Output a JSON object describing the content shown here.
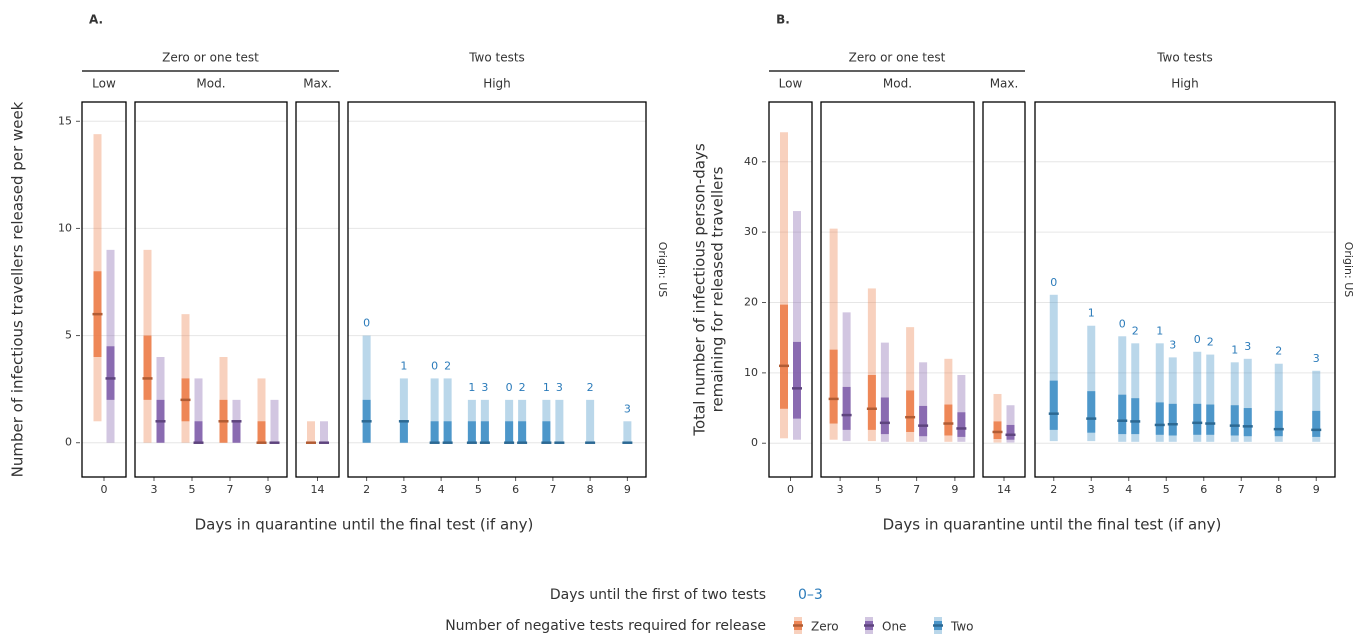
{
  "legend": {
    "first_test_title": "Days until the first of two tests",
    "first_test_range": "0–3",
    "title": "Number of negative tests required for release",
    "label_color": "#2b7bba",
    "series": [
      {
        "name": "Zero",
        "color": "#ec7a45"
      },
      {
        "name": "One",
        "color": "#7e5ba8"
      },
      {
        "name": "Two",
        "color": "#3a8cc4"
      }
    ]
  },
  "chart_data": [
    {
      "type": "interval",
      "title": "A.",
      "ylabel": [
        "Number of infectious travellers released per week"
      ],
      "xlabel": "Days in quarantine until the final test (if any)",
      "strip_right": "Origin: US",
      "ylim": [
        -1.6,
        15.9
      ],
      "yticks": [
        0,
        5,
        10,
        15
      ],
      "grid": true,
      "facet_groups": [
        {
          "label": "Zero or one test",
          "facets": [
            {
              "name": "Low",
              "categories": [
                0
              ],
              "groups": [
                [
                  {
                    "series": "Zero",
                    "low": 1,
                    "q1": 4,
                    "median": 6,
                    "q3": 8,
                    "high": 14.4
                  },
                  {
                    "series": "One",
                    "low": 0,
                    "q1": 2,
                    "median": 3,
                    "q3": 4.5,
                    "high": 9
                  }
                ]
              ]
            },
            {
              "name": "Mod.",
              "categories": [
                3,
                5,
                7,
                9
              ],
              "groups": [
                [
                  {
                    "series": "Zero",
                    "low": 0,
                    "q1": 2,
                    "median": 3,
                    "q3": 5,
                    "high": 9
                  },
                  {
                    "series": "One",
                    "low": 0,
                    "q1": 0,
                    "median": 1,
                    "q3": 2,
                    "high": 4
                  }
                ],
                [
                  {
                    "series": "Zero",
                    "low": 0,
                    "q1": 1,
                    "median": 2,
                    "q3": 3,
                    "high": 6
                  },
                  {
                    "series": "One",
                    "low": 0,
                    "q1": 0,
                    "median": 0,
                    "q3": 1,
                    "high": 3
                  }
                ],
                [
                  {
                    "series": "Zero",
                    "low": 0,
                    "q1": 0,
                    "median": 1,
                    "q3": 2,
                    "high": 4
                  },
                  {
                    "series": "One",
                    "low": 0,
                    "q1": 0,
                    "median": 1,
                    "q3": 1,
                    "high": 2
                  }
                ],
                [
                  {
                    "series": "Zero",
                    "low": 0,
                    "q1": 0,
                    "median": 0,
                    "q3": 1,
                    "high": 3
                  },
                  {
                    "series": "One",
                    "low": 0,
                    "q1": 0,
                    "median": 0,
                    "q3": 0,
                    "high": 2
                  }
                ]
              ]
            },
            {
              "name": "Max.",
              "categories": [
                14
              ],
              "groups": [
                [
                  {
                    "series": "Zero",
                    "low": 0,
                    "q1": 0,
                    "median": 0,
                    "q3": 0,
                    "high": 1
                  },
                  {
                    "series": "One",
                    "low": 0,
                    "q1": 0,
                    "median": 0,
                    "q3": 0,
                    "high": 1
                  }
                ]
              ]
            }
          ]
        },
        {
          "label": "Two tests",
          "facets": [
            {
              "name": "High",
              "categories": [
                2,
                3,
                4,
                5,
                6,
                7,
                8,
                9
              ],
              "groups": [
                [
                  {
                    "series": "Two",
                    "first_test": 0,
                    "low": 0,
                    "q1": 0,
                    "median": 1,
                    "q3": 2,
                    "high": 5
                  }
                ],
                [
                  {
                    "series": "Two",
                    "first_test": 1,
                    "low": 0,
                    "q1": 0,
                    "median": 1,
                    "q3": 1,
                    "high": 3
                  }
                ],
                [
                  {
                    "series": "Two",
                    "first_test": 0,
                    "low": 0,
                    "q1": 0,
                    "median": 0,
                    "q3": 1,
                    "high": 3
                  },
                  {
                    "series": "Two",
                    "first_test": 2,
                    "low": 0,
                    "q1": 0,
                    "median": 0,
                    "q3": 1,
                    "high": 3
                  }
                ],
                [
                  {
                    "series": "Two",
                    "first_test": 1,
                    "low": 0,
                    "q1": 0,
                    "median": 0,
                    "q3": 1,
                    "high": 2
                  },
                  {
                    "series": "Two",
                    "first_test": 3,
                    "low": 0,
                    "q1": 0,
                    "median": 0,
                    "q3": 1,
                    "high": 2
                  }
                ],
                [
                  {
                    "series": "Two",
                    "first_test": 0,
                    "low": 0,
                    "q1": 0,
                    "median": 0,
                    "q3": 1,
                    "high": 2
                  },
                  {
                    "series": "Two",
                    "first_test": 2,
                    "low": 0,
                    "q1": 0,
                    "median": 0,
                    "q3": 1,
                    "high": 2
                  }
                ],
                [
                  {
                    "series": "Two",
                    "first_test": 1,
                    "low": 0,
                    "q1": 0,
                    "median": 0,
                    "q3": 1,
                    "high": 2
                  },
                  {
                    "series": "Two",
                    "first_test": 3,
                    "low": 0,
                    "q1": 0,
                    "median": 0,
                    "q3": 0,
                    "high": 2
                  }
                ],
                [
                  {
                    "series": "Two",
                    "first_test": 2,
                    "low": 0,
                    "q1": 0,
                    "median": 0,
                    "q3": 0,
                    "high": 2
                  }
                ],
                [
                  {
                    "series": "Two",
                    "first_test": 3,
                    "low": 0,
                    "q1": 0,
                    "median": 0,
                    "q3": 0,
                    "high": 1
                  }
                ]
              ]
            }
          ]
        }
      ]
    },
    {
      "type": "interval",
      "title": "B.",
      "ylabel": [
        "Total number of infectious person-days",
        "remaining for released travellers"
      ],
      "xlabel": "Days in quarantine until the final test (if any)",
      "strip_right": "Origin: US",
      "ylim": [
        -4.8,
        48.5
      ],
      "yticks": [
        0,
        10,
        20,
        30,
        40
      ],
      "grid": true,
      "facet_groups": [
        {
          "label": "Zero or one test",
          "facets": [
            {
              "name": "Low",
              "categories": [
                0
              ],
              "groups": [
                [
                  {
                    "series": "Zero",
                    "low": 0.7,
                    "q1": 4.9,
                    "median": 11,
                    "q3": 19.7,
                    "high": 44.2
                  },
                  {
                    "series": "One",
                    "low": 0.5,
                    "q1": 3.5,
                    "median": 7.8,
                    "q3": 14.4,
                    "high": 33
                  }
                ]
              ]
            },
            {
              "name": "Mod.",
              "categories": [
                3,
                5,
                7,
                9
              ],
              "groups": [
                [
                  {
                    "series": "Zero",
                    "low": 0.5,
                    "q1": 2.8,
                    "median": 6.3,
                    "q3": 13.3,
                    "high": 30.5
                  },
                  {
                    "series": "One",
                    "low": 0.3,
                    "q1": 1.9,
                    "median": 4,
                    "q3": 8,
                    "high": 18.6
                  }
                ],
                [
                  {
                    "series": "Zero",
                    "low": 0.3,
                    "q1": 1.9,
                    "median": 4.9,
                    "q3": 9.7,
                    "high": 22
                  },
                  {
                    "series": "One",
                    "low": 0.2,
                    "q1": 1.3,
                    "median": 2.9,
                    "q3": 6.5,
                    "high": 14.3
                  }
                ],
                [
                  {
                    "series": "Zero",
                    "low": 0.2,
                    "q1": 1.6,
                    "median": 3.7,
                    "q3": 7.5,
                    "high": 16.5
                  },
                  {
                    "series": "One",
                    "low": 0.2,
                    "q1": 1,
                    "median": 2.5,
                    "q3": 5.3,
                    "high": 11.5
                  }
                ],
                [
                  {
                    "series": "Zero",
                    "low": 0.2,
                    "q1": 1.1,
                    "median": 2.8,
                    "q3": 5.5,
                    "high": 12
                  },
                  {
                    "series": "One",
                    "low": 0.2,
                    "q1": 0.9,
                    "median": 2.1,
                    "q3": 4.4,
                    "high": 9.7
                  }
                ]
              ]
            },
            {
              "name": "Max.",
              "categories": [
                14
              ],
              "groups": [
                [
                  {
                    "series": "Zero",
                    "low": 0.1,
                    "q1": 0.6,
                    "median": 1.6,
                    "q3": 3.1,
                    "high": 7
                  },
                  {
                    "series": "One",
                    "low": 0.1,
                    "q1": 0.5,
                    "median": 1.2,
                    "q3": 2.6,
                    "high": 5.4
                  }
                ]
              ]
            }
          ]
        },
        {
          "label": "Two tests",
          "facets": [
            {
              "name": "High",
              "categories": [
                2,
                3,
                4,
                5,
                6,
                7,
                8,
                9
              ],
              "groups": [
                [
                  {
                    "series": "Two",
                    "first_test": 0,
                    "low": 0.3,
                    "q1": 1.9,
                    "median": 4.2,
                    "q3": 8.9,
                    "high": 21.1
                  }
                ],
                [
                  {
                    "series": "Two",
                    "first_test": 1,
                    "low": 0.3,
                    "q1": 1.5,
                    "median": 3.5,
                    "q3": 7.4,
                    "high": 16.7
                  }
                ],
                [
                  {
                    "series": "Two",
                    "first_test": 0,
                    "low": 0.2,
                    "q1": 1.3,
                    "median": 3.2,
                    "q3": 6.9,
                    "high": 15.2
                  },
                  {
                    "series": "Two",
                    "first_test": 2,
                    "low": 0.2,
                    "q1": 1.3,
                    "median": 3.1,
                    "q3": 6.4,
                    "high": 14.2
                  }
                ],
                [
                  {
                    "series": "Two",
                    "first_test": 1,
                    "low": 0.2,
                    "q1": 1.2,
                    "median": 2.6,
                    "q3": 5.8,
                    "high": 14.2
                  },
                  {
                    "series": "Two",
                    "first_test": 3,
                    "low": 0.2,
                    "q1": 1.1,
                    "median": 2.7,
                    "q3": 5.6,
                    "high": 12.2
                  }
                ],
                [
                  {
                    "series": "Two",
                    "first_test": 0,
                    "low": 0.2,
                    "q1": 1.2,
                    "median": 2.9,
                    "q3": 5.6,
                    "high": 13
                  },
                  {
                    "series": "Two",
                    "first_test": 2,
                    "low": 0.2,
                    "q1": 1.2,
                    "median": 2.8,
                    "q3": 5.5,
                    "high": 12.6
                  }
                ],
                [
                  {
                    "series": "Two",
                    "first_test": 1,
                    "low": 0.2,
                    "q1": 1.1,
                    "median": 2.5,
                    "q3": 5.4,
                    "high": 11.5
                  },
                  {
                    "series": "Two",
                    "first_test": 3,
                    "low": 0.2,
                    "q1": 1,
                    "median": 2.4,
                    "q3": 5,
                    "high": 12
                  }
                ],
                [
                  {
                    "series": "Two",
                    "first_test": 2,
                    "low": 0.2,
                    "q1": 1,
                    "median": 2,
                    "q3": 4.6,
                    "high": 11.3
                  }
                ],
                [
                  {
                    "series": "Two",
                    "first_test": 3,
                    "low": 0.2,
                    "q1": 0.9,
                    "median": 1.9,
                    "q3": 4.6,
                    "high": 10.3
                  }
                ]
              ]
            }
          ]
        }
      ]
    }
  ]
}
